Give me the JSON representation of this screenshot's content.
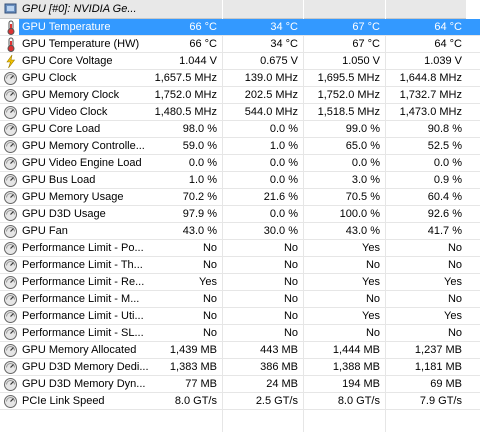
{
  "header": {
    "title": "GPU [#0]: NVIDIA Ge..."
  },
  "table": {
    "rows": [
      [
        "GPU Temperature",
        "66 °C",
        "34 °C",
        "67 °C",
        "64 °C"
      ],
      [
        "GPU Temperature (HW)",
        "66 °C",
        "34 °C",
        "67 °C",
        "64 °C"
      ],
      [
        "GPU Core Voltage",
        "1.044 V",
        "0.675 V",
        "1.050 V",
        "1.039 V"
      ],
      [
        "GPU Clock",
        "1,657.5 MHz",
        "139.0 MHz",
        "1,695.5 MHz",
        "1,644.8 MHz"
      ],
      [
        "GPU Memory Clock",
        "1,752.0 MHz",
        "202.5 MHz",
        "1,752.0 MHz",
        "1,732.7 MHz"
      ],
      [
        "GPU Video Clock",
        "1,480.5 MHz",
        "544.0 MHz",
        "1,518.5 MHz",
        "1,473.0 MHz"
      ],
      [
        "GPU Core Load",
        "98.0 %",
        "0.0 %",
        "99.0 %",
        "90.8 %"
      ],
      [
        "GPU Memory Controlle...",
        "59.0 %",
        "1.0 %",
        "65.0 %",
        "52.5 %"
      ],
      [
        "GPU Video Engine Load",
        "0.0 %",
        "0.0 %",
        "0.0 %",
        "0.0 %"
      ],
      [
        "GPU Bus Load",
        "1.0 %",
        "0.0 %",
        "3.0 %",
        "0.9 %"
      ],
      [
        "GPU Memory Usage",
        "70.2 %",
        "21.6 %",
        "70.5 %",
        "60.4 %"
      ],
      [
        "GPU D3D Usage",
        "97.9 %",
        "0.0 %",
        "100.0 %",
        "92.6 %"
      ],
      [
        "GPU Fan",
        "43.0 %",
        "30.0 %",
        "43.0 %",
        "41.7 %"
      ],
      [
        "Performance Limit - Po...",
        "No",
        "No",
        "Yes",
        "No"
      ],
      [
        "Performance Limit - Th...",
        "No",
        "No",
        "No",
        "No"
      ],
      [
        "Performance Limit - Re...",
        "Yes",
        "No",
        "Yes",
        "Yes"
      ],
      [
        "Performance Limit - M...",
        "No",
        "No",
        "No",
        "No"
      ],
      [
        "Performance Limit - Uti...",
        "No",
        "No",
        "Yes",
        "Yes"
      ],
      [
        "Performance Limit - SL...",
        "No",
        "No",
        "No",
        "No"
      ],
      [
        "GPU Memory Allocated",
        "1,439 MB",
        "443 MB",
        "1,444 MB",
        "1,237 MB"
      ],
      [
        "GPU D3D Memory Dedi...",
        "1,383 MB",
        "386 MB",
        "1,388 MB",
        "1,181 MB"
      ],
      [
        "GPU D3D Memory Dyn...",
        "77 MB",
        "24 MB",
        "194 MB",
        "69 MB"
      ],
      [
        "PCIe Link Speed",
        "8.0 GT/s",
        "2.5 GT/s",
        "8.0 GT/s",
        "7.9 GT/s"
      ]
    ]
  }
}
